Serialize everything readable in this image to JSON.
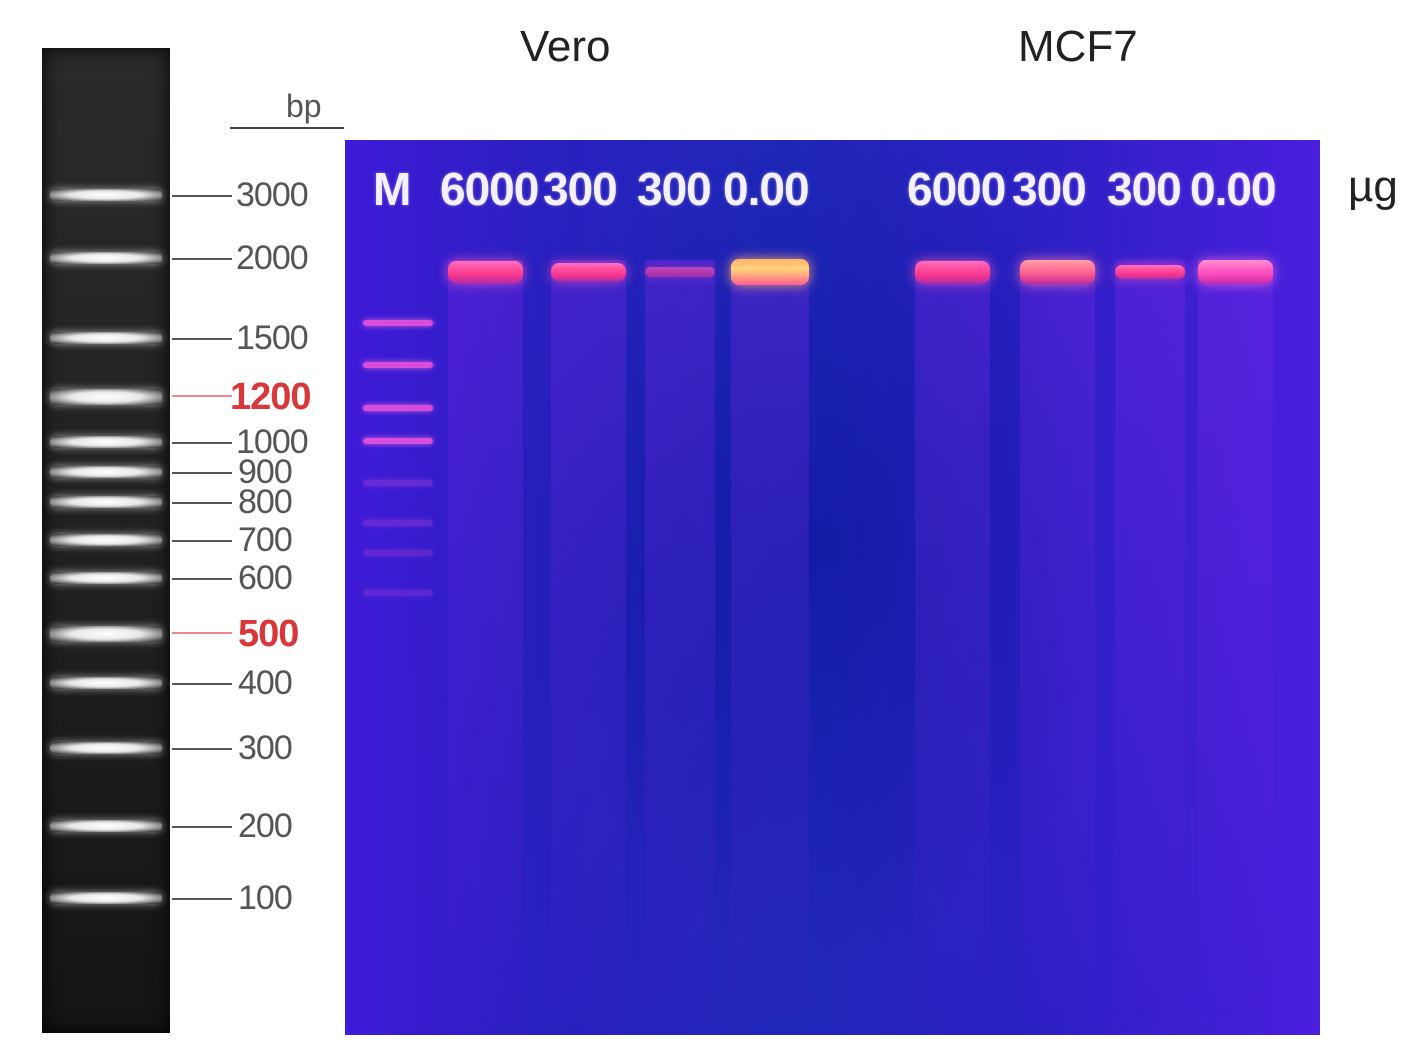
{
  "bp_unit": "bp",
  "ladder_labels": [
    "3000",
    "2000",
    "1500",
    "1200",
    "1000",
    "900",
    "800",
    "700",
    "600",
    "500",
    "400",
    "300",
    "200",
    "100"
  ],
  "ladder_highlight": [
    "1200",
    "500"
  ],
  "group_titles": [
    "Vero",
    "MCF7"
  ],
  "lane_labels": [
    "M",
    "6000",
    "300",
    "300",
    "0.00",
    "6000",
    "300",
    "300",
    "0.00"
  ],
  "dose_unit": "µg",
  "colors": {
    "gel_base": "#2a1fbf",
    "highlight_label": "#d9383b",
    "band_glow": "#ff5fc0"
  }
}
